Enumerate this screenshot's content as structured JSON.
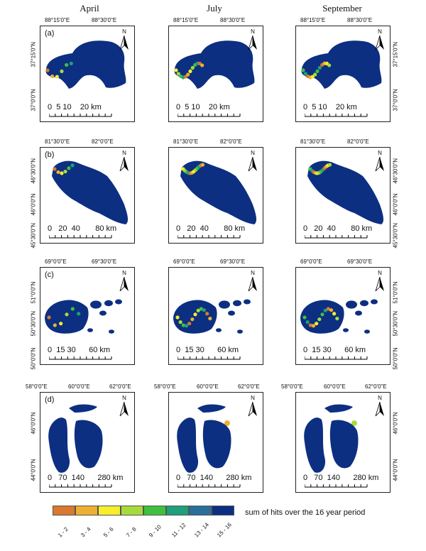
{
  "colors": {
    "ramp": [
      "#d9782f",
      "#eeb030",
      "#f6ef2a",
      "#a6dc3a",
      "#3fc13f",
      "#1f9f7a",
      "#2a6e9a",
      "#0c2f82"
    ]
  },
  "column_titles": [
    "April",
    "July",
    "September"
  ],
  "rows": [
    {
      "label": "(a)",
      "lon": [
        "88°15'0\"E",
        "88°30'0\"E"
      ],
      "lat": [
        "37°15'0\"N",
        "37°0'0\"N"
      ],
      "scale": "0  5 10    20 km"
    },
    {
      "label": "(b)",
      "lon": [
        "81°30'0\"E",
        "82°0'0\"E"
      ],
      "lat": [
        "46°30'0\"N",
        "46°0'0\"N",
        "45°30'0\"N"
      ],
      "scale": "0   20  40       80 km"
    },
    {
      "label": "(c)",
      "lon": [
        "69°0'0\"E",
        "69°30'0\"E"
      ],
      "lat": [
        "51°0'0\"N",
        "50°30'0\"N",
        "50°0'0\"N"
      ],
      "scale": "0  15 30      60 km"
    },
    {
      "label": "(d)",
      "lon": [
        "58°0'0\"E",
        "60°0'0\"E",
        "62°0'0\"E"
      ],
      "lat": [
        "46°0'0\"N",
        "44°0'0\"N"
      ],
      "scale": "0   70  140      280 km"
    }
  ],
  "north_label": "N",
  "legend": {
    "classes": [
      "1 - 2",
      "3 - 4",
      "5 - 6",
      "7 - 8",
      "9 - 10",
      "11 - 12",
      "13 - 14",
      "15 - 16"
    ],
    "title": "sum of hits over the 16 year period"
  }
}
